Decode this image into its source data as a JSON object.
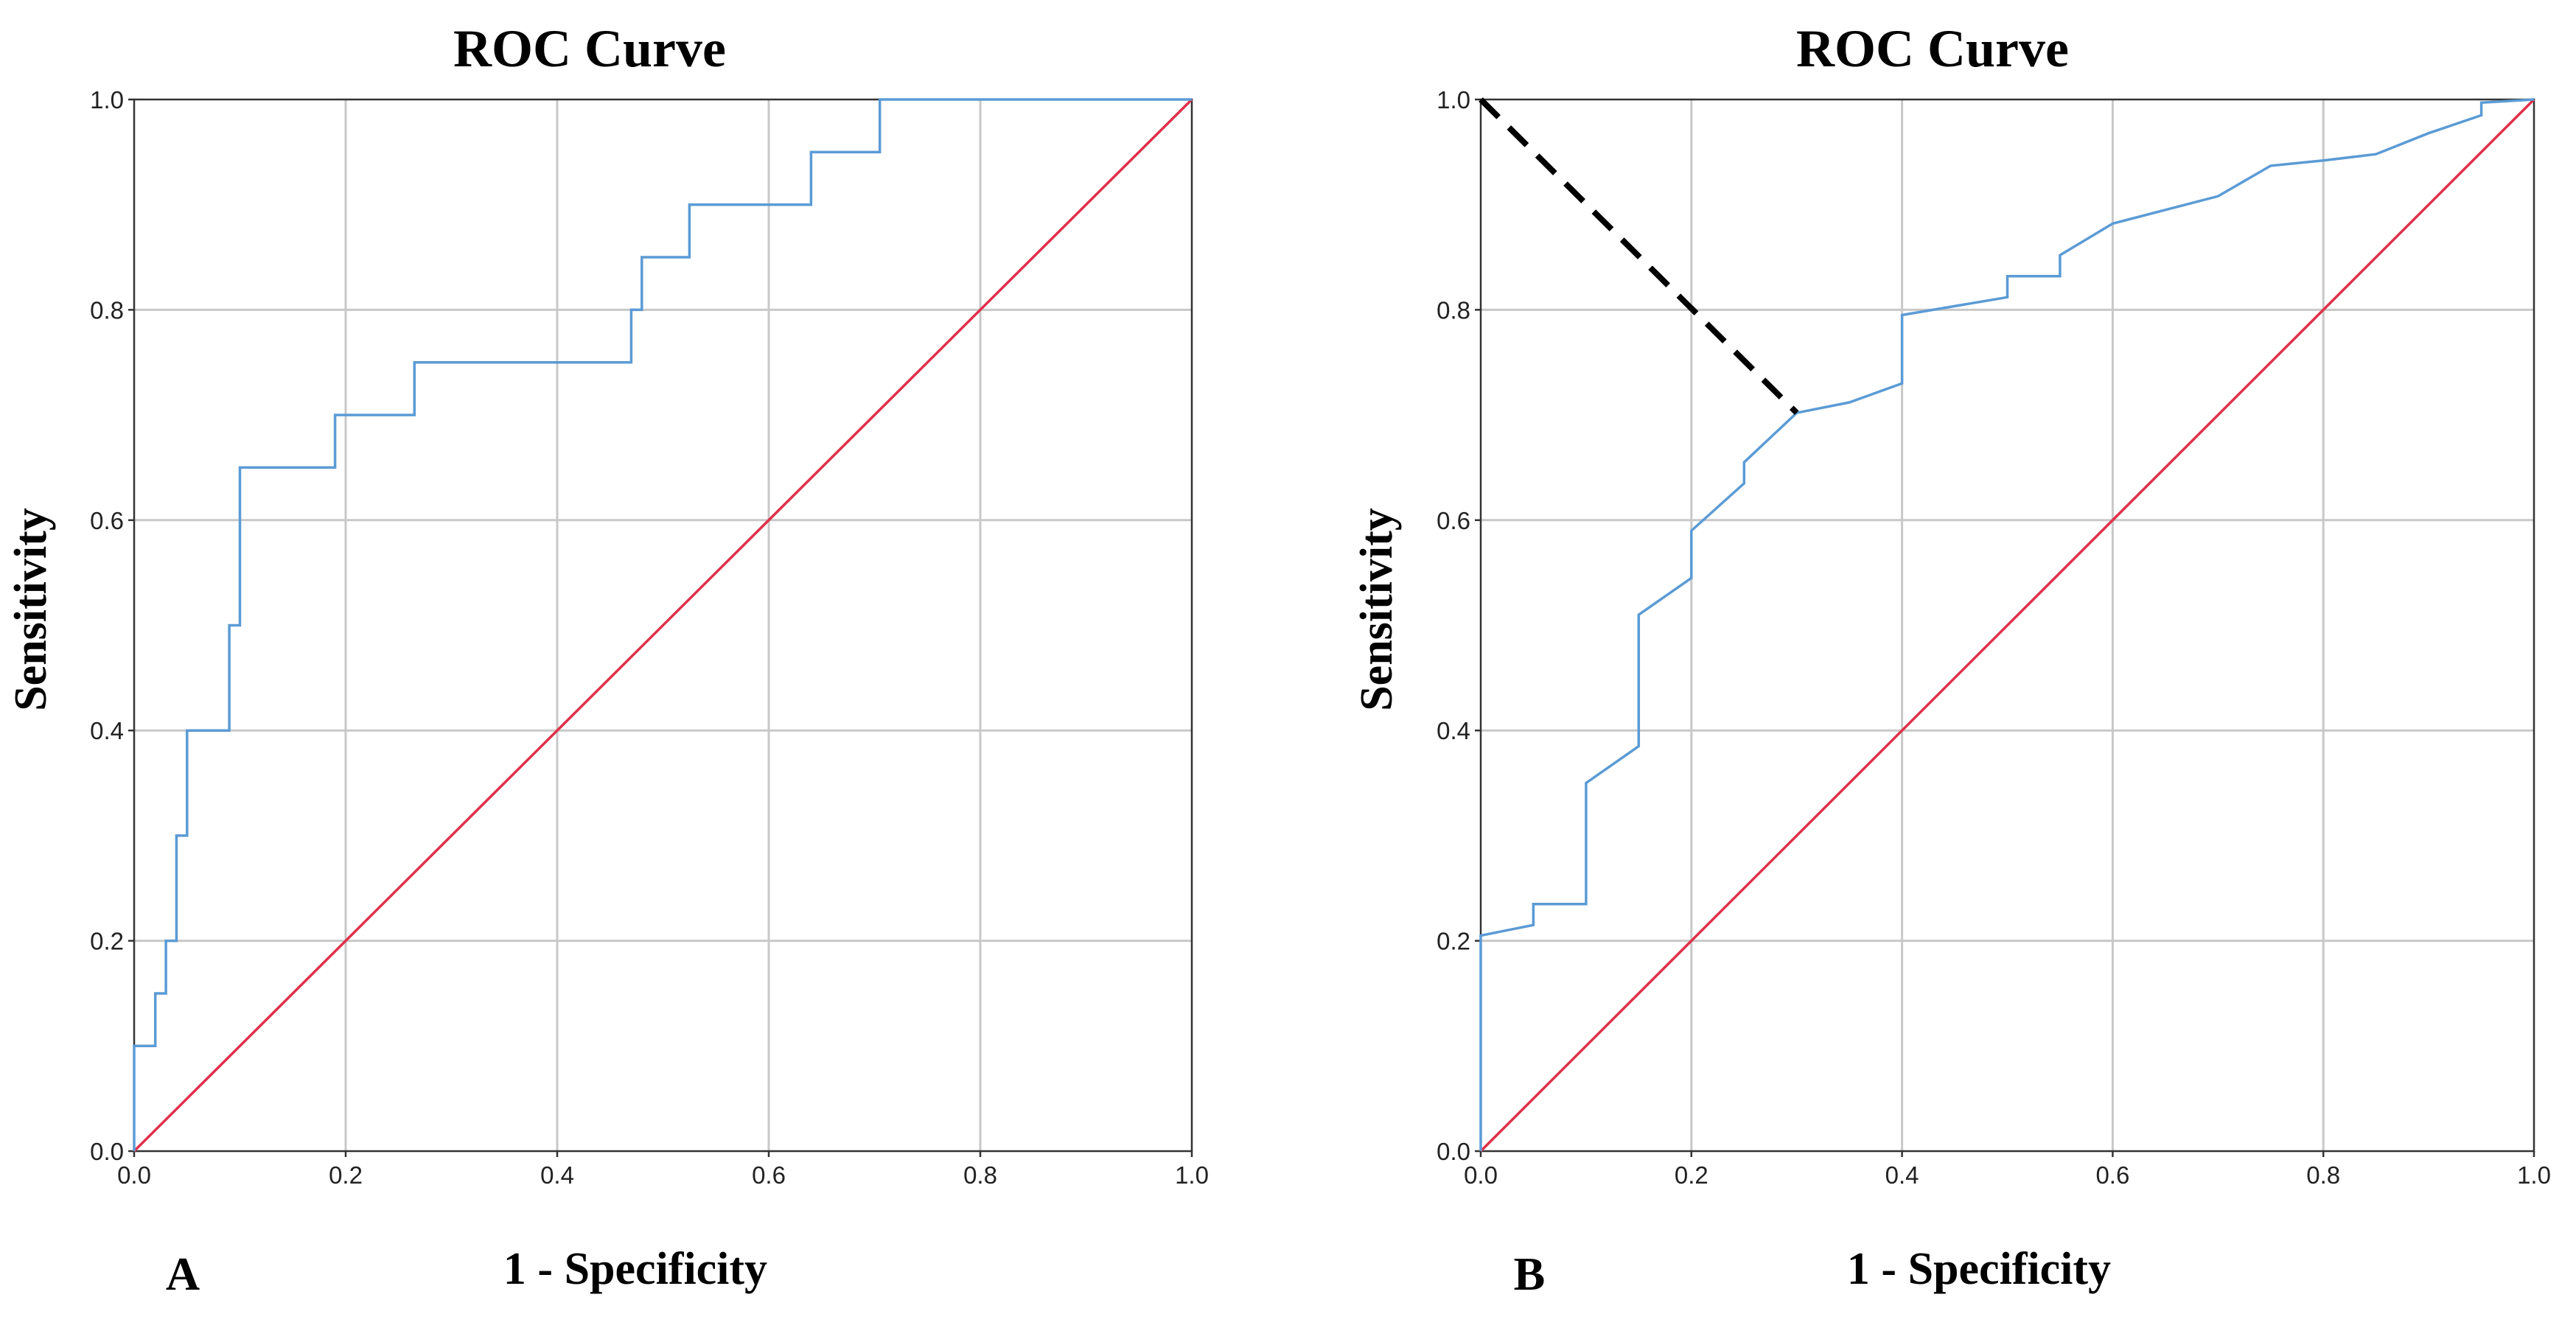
{
  "colors": {
    "roc_curve": "#5b9bd5",
    "reference_line": "#e0304a",
    "cutoff_line": "#000000",
    "grid": "#c8c8c8"
  },
  "chart_data": [
    {
      "type": "line",
      "panel_label": "A",
      "title": "ROC Curve",
      "xlabel": "1 - Specificity",
      "ylabel": "Sensitivity",
      "xlim": [
        0,
        1
      ],
      "ylim": [
        0,
        1
      ],
      "grid": true,
      "x_ticks": [
        "0.0",
        "0.2",
        "0.4",
        "0.6",
        "0.8",
        "1.0"
      ],
      "y_ticks": [
        "0.0",
        "0.2",
        "0.4",
        "0.6",
        "0.8",
        "1.0"
      ],
      "series": [
        {
          "name": "ROC curve",
          "color": "#5b9bd5",
          "style": "step",
          "points": [
            [
              0,
              0
            ],
            [
              0,
              0.1
            ],
            [
              0.02,
              0.1
            ],
            [
              0.02,
              0.15
            ],
            [
              0.03,
              0.15
            ],
            [
              0.03,
              0.2
            ],
            [
              0.04,
              0.2
            ],
            [
              0.04,
              0.3
            ],
            [
              0.05,
              0.3
            ],
            [
              0.05,
              0.4
            ],
            [
              0.09,
              0.4
            ],
            [
              0.09,
              0.5
            ],
            [
              0.1,
              0.5
            ],
            [
              0.1,
              0.65
            ],
            [
              0.19,
              0.65
            ],
            [
              0.19,
              0.7
            ],
            [
              0.265,
              0.7
            ],
            [
              0.265,
              0.75
            ],
            [
              0.47,
              0.75
            ],
            [
              0.47,
              0.8
            ],
            [
              0.48,
              0.8
            ],
            [
              0.48,
              0.85
            ],
            [
              0.525,
              0.85
            ],
            [
              0.525,
              0.9
            ],
            [
              0.64,
              0.9
            ],
            [
              0.64,
              0.95
            ],
            [
              0.705,
              0.95
            ],
            [
              0.705,
              1.0
            ],
            [
              1.0,
              1.0
            ]
          ]
        },
        {
          "name": "Reference line",
          "color": "#e0304a",
          "style": "line",
          "points": [
            [
              0,
              0
            ],
            [
              1,
              1
            ]
          ]
        }
      ]
    },
    {
      "type": "line",
      "panel_label": "B",
      "title": "ROC Curve",
      "xlabel": "1 - Specificity",
      "ylabel": "Sensitivity",
      "xlim": [
        0,
        1
      ],
      "ylim": [
        0,
        1
      ],
      "grid": true,
      "x_ticks": [
        "0.0",
        "0.2",
        "0.4",
        "0.6",
        "0.8",
        "1.0"
      ],
      "y_ticks": [
        "0.0",
        "0.2",
        "0.4",
        "0.6",
        "0.8",
        "1.0"
      ],
      "series": [
        {
          "name": "ROC curve",
          "color": "#5b9bd5",
          "style": "line",
          "points": [
            [
              0,
              0
            ],
            [
              0.0,
              0.205
            ],
            [
              0.05,
              0.215
            ],
            [
              0.05,
              0.235
            ],
            [
              0.1,
              0.235
            ],
            [
              0.1,
              0.35
            ],
            [
              0.15,
              0.385
            ],
            [
              0.15,
              0.51
            ],
            [
              0.2,
              0.545
            ],
            [
              0.2,
              0.59
            ],
            [
              0.25,
              0.635
            ],
            [
              0.25,
              0.655
            ],
            [
              0.3,
              0.702
            ],
            [
              0.35,
              0.712
            ],
            [
              0.4,
              0.73
            ],
            [
              0.4,
              0.795
            ],
            [
              0.5,
              0.812
            ],
            [
              0.5,
              0.832
            ],
            [
              0.55,
              0.832
            ],
            [
              0.55,
              0.852
            ],
            [
              0.6,
              0.882
            ],
            [
              0.7,
              0.908
            ],
            [
              0.75,
              0.937
            ],
            [
              0.8,
              0.942
            ],
            [
              0.85,
              0.948
            ],
            [
              0.9,
              0.968
            ],
            [
              0.95,
              0.985
            ],
            [
              0.95,
              0.997
            ],
            [
              1.0,
              1.0
            ]
          ]
        },
        {
          "name": "Reference line",
          "color": "#e0304a",
          "style": "line",
          "points": [
            [
              0,
              0
            ],
            [
              1,
              1
            ]
          ]
        },
        {
          "name": "Cutoff distance",
          "color": "#000000",
          "style": "dashed",
          "points": [
            [
              0,
              1
            ],
            [
              0.3,
              0.702
            ]
          ]
        }
      ]
    }
  ]
}
